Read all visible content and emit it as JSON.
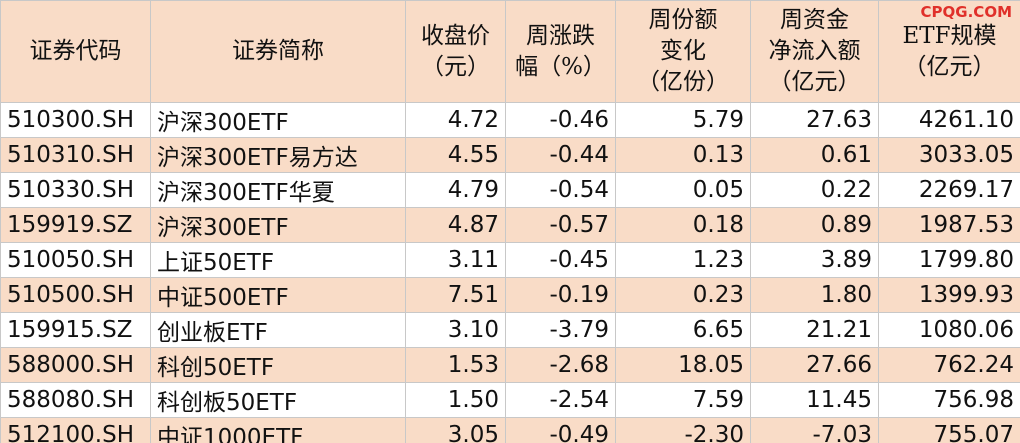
{
  "watermark": "CPQG.COM",
  "table": {
    "columns": [
      {
        "lines": [
          "证券代码"
        ]
      },
      {
        "lines": [
          "证券简称"
        ]
      },
      {
        "lines": [
          "收盘价",
          "（元）"
        ]
      },
      {
        "lines": [
          "周涨跌",
          "幅（%）"
        ]
      },
      {
        "lines": [
          "周份额",
          "变化",
          "（亿份）"
        ]
      },
      {
        "lines": [
          "周资金",
          "净流入额",
          "（亿元）"
        ]
      },
      {
        "lines": [
          "ETF规模",
          "（亿元）"
        ]
      }
    ],
    "rows": [
      [
        "510300.SH",
        "沪深300ETF",
        "4.72",
        "-0.46",
        "5.79",
        "27.63",
        "4261.10"
      ],
      [
        "510310.SH",
        "沪深300ETF易方达",
        "4.55",
        "-0.44",
        "0.13",
        "0.61",
        "3033.05"
      ],
      [
        "510330.SH",
        "沪深300ETF华夏",
        "4.79",
        "-0.54",
        "0.05",
        "0.22",
        "2269.17"
      ],
      [
        "159919.SZ",
        "沪深300ETF",
        "4.87",
        "-0.57",
        "0.18",
        "0.89",
        "1987.53"
      ],
      [
        "510050.SH",
        "上证50ETF",
        "3.11",
        "-0.45",
        "1.23",
        "3.89",
        "1799.80"
      ],
      [
        "510500.SH",
        "中证500ETF",
        "7.51",
        "-0.19",
        "0.23",
        "1.80",
        "1399.93"
      ],
      [
        "159915.SZ",
        "创业板ETF",
        "3.10",
        "-3.79",
        "6.65",
        "21.21",
        "1080.06"
      ],
      [
        "588000.SH",
        "科创50ETF",
        "1.53",
        "-2.68",
        "18.05",
        "27.66",
        "762.24"
      ],
      [
        "588080.SH",
        "科创板50ETF",
        "1.50",
        "-2.54",
        "7.59",
        "11.45",
        "756.98"
      ],
      [
        "512100.SH",
        "中证1000ETF",
        "3.05",
        "-0.49",
        "-2.30",
        "-7.03",
        "755.07"
      ]
    ]
  }
}
